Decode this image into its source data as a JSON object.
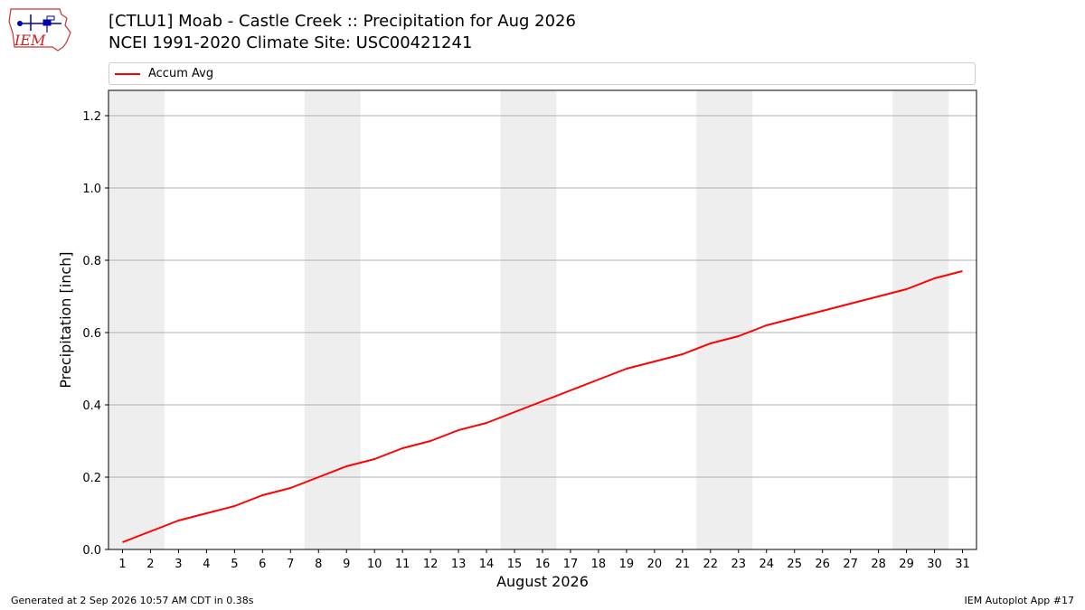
{
  "header": {
    "title": "[CTLU1] Moab - Castle Creek :: Precipitation for Aug 2026",
    "subtitle": "NCEI 1991-2020 Climate Site: USC00421241",
    "logo_text": "IEM"
  },
  "legend": {
    "entries": [
      {
        "label": "Accum Avg",
        "color": "#ff0000"
      }
    ]
  },
  "footer": {
    "left": "Generated at 2 Sep 2026 10:57 AM CDT in 0.38s",
    "right": "IEM Autoplot App #17"
  },
  "chart_data": {
    "type": "line",
    "title": "[CTLU1] Moab - Castle Creek :: Precipitation for Aug 2026",
    "xlabel": "August 2026",
    "ylabel": "Precipitation [inch]",
    "x": [
      1,
      2,
      3,
      4,
      5,
      6,
      7,
      8,
      9,
      10,
      11,
      12,
      13,
      14,
      15,
      16,
      17,
      18,
      19,
      20,
      21,
      22,
      23,
      24,
      25,
      26,
      27,
      28,
      29,
      30,
      31
    ],
    "xlim": [
      0.5,
      31.5
    ],
    "ylim": [
      0,
      1.27
    ],
    "yticks": [
      0.0,
      0.2,
      0.4,
      0.6,
      0.8,
      1.0,
      1.2
    ],
    "ytick_labels": [
      "0.0",
      "0.2",
      "0.4",
      "0.6",
      "0.8",
      "1.0",
      "1.2"
    ],
    "xtick_labels": [
      "1",
      "2",
      "3",
      "4",
      "5",
      "6",
      "7",
      "8",
      "9",
      "10",
      "11",
      "12",
      "13",
      "14",
      "15",
      "16",
      "17",
      "18",
      "19",
      "20",
      "21",
      "22",
      "23",
      "24",
      "25",
      "26",
      "27",
      "28",
      "29",
      "30",
      "31"
    ],
    "weekend_shading": [
      [
        0.5,
        2.5
      ],
      [
        7.5,
        9.5
      ],
      [
        14.5,
        16.5
      ],
      [
        21.5,
        23.5
      ],
      [
        28.5,
        30.5
      ]
    ],
    "grid": "y",
    "legend_position": "top",
    "series": [
      {
        "name": "Accum Avg",
        "color": "#ff0000",
        "values": [
          0.02,
          0.05,
          0.08,
          0.1,
          0.12,
          0.15,
          0.17,
          0.2,
          0.23,
          0.25,
          0.28,
          0.3,
          0.33,
          0.35,
          0.38,
          0.41,
          0.44,
          0.47,
          0.5,
          0.52,
          0.54,
          0.57,
          0.59,
          0.62,
          0.64,
          0.66,
          0.68,
          0.7,
          0.72,
          0.75,
          0.77
        ]
      }
    ]
  }
}
